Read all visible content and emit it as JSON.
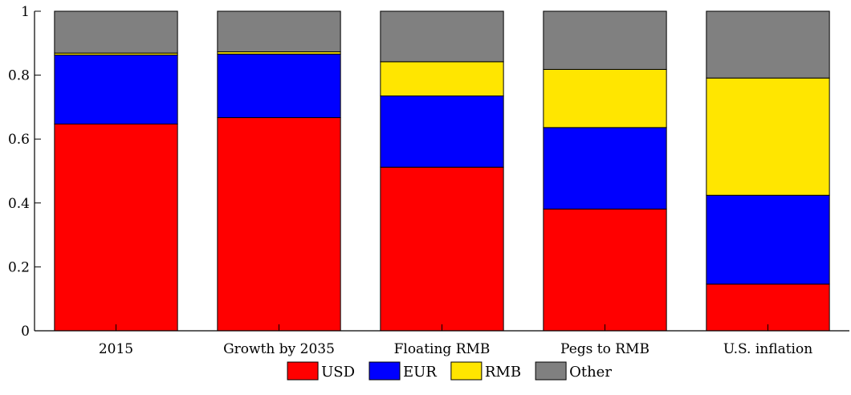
{
  "chart_data": {
    "type": "bar",
    "stacked": true,
    "title": "",
    "xlabel": "",
    "ylabel": "",
    "ylim": [
      0,
      1
    ],
    "yticks": [
      0,
      0.2,
      0.4,
      0.6,
      0.8,
      1
    ],
    "ytick_labels": [
      "0",
      "0.2",
      "0.4",
      "0.6",
      "0.8",
      "1"
    ],
    "categories": [
      "2015",
      "Growth by 2035",
      "Floating RMB",
      "Pegs to RMB",
      "U.S. inflation"
    ],
    "series": [
      {
        "name": "USD",
        "color": "#ff0000",
        "values": [
          0.647,
          0.667,
          0.512,
          0.381,
          0.146
        ]
      },
      {
        "name": "EUR",
        "color": "#0000ff",
        "values": [
          0.216,
          0.199,
          0.223,
          0.255,
          0.278
        ]
      },
      {
        "name": "RMB",
        "color": "#ffe600",
        "values": [
          0.006,
          0.007,
          0.107,
          0.182,
          0.367
        ]
      },
      {
        "name": "Other",
        "color": "#808080",
        "values": [
          0.131,
          0.127,
          0.158,
          0.182,
          0.209
        ]
      }
    ],
    "grid": false,
    "legend_position": "bottom"
  }
}
